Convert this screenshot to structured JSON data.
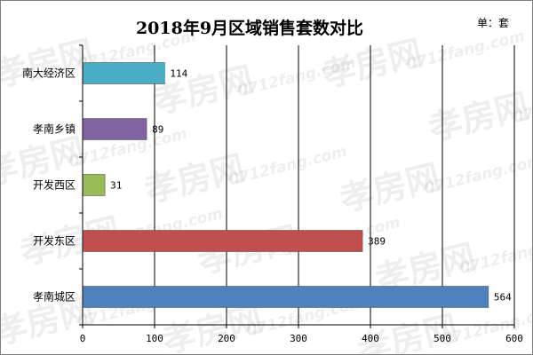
{
  "chart_data": {
    "type": "bar",
    "orientation": "horizontal",
    "title": "2018年9月区域销售套数对比",
    "unit_label": "单：套",
    "categories": [
      "南大经济区",
      "孝南乡镇",
      "开发西区",
      "开发东区",
      "孝南城区"
    ],
    "values": [
      114,
      89,
      31,
      389,
      564
    ],
    "bar_colors": [
      "#4bacc6",
      "#8064a2",
      "#9bbb59",
      "#c0504d",
      "#4f81bd"
    ],
    "xlim": [
      0,
      600
    ],
    "xticks": [
      "0",
      "100",
      "200",
      "300",
      "400",
      "500",
      "600"
    ],
    "grid": "vertical",
    "legend": "none"
  },
  "watermark": {
    "text": "孝房网",
    "subtext": "0712fang.com"
  }
}
